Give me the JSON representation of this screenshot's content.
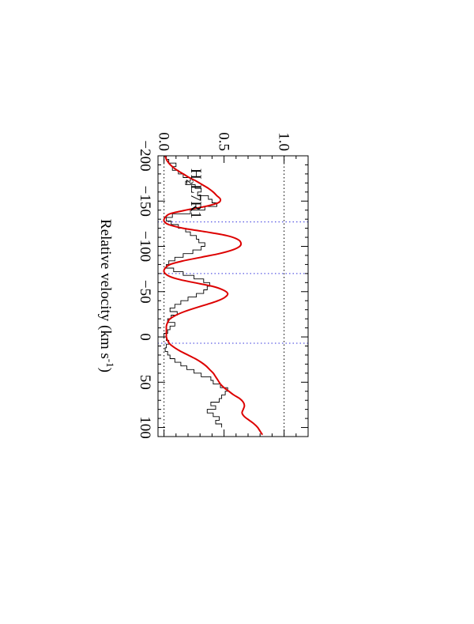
{
  "chart_data": {
    "type": "line",
    "title": "",
    "orientation": "rotated-90-clockwise",
    "xlabel": "Relative velocity (km s",
    "xlabel_sup": "-1",
    "xlabel_tail": ")",
    "ylabel": "",
    "xlim": [
      -200,
      110
    ],
    "ylim": [
      -0.05,
      1.2
    ],
    "x_ticks": [
      -200,
      -150,
      -100,
      -50,
      0,
      50,
      100
    ],
    "x_tick_labels": [
      "−200",
      "−150",
      "−100",
      "−50",
      "0",
      "50",
      "100"
    ],
    "y_ticks": [
      0.0,
      0.5,
      1.0
    ],
    "y_tick_labels": [
      "0.0",
      "0.5",
      "1.0"
    ],
    "reference_lines_y": [
      0.0,
      1.0
    ],
    "component_lines_x": [
      -127,
      -70,
      7
    ],
    "annotation": {
      "prefix": "H",
      "sub": "2",
      "rest": "L7R1"
    },
    "series": [
      {
        "style": "histogram",
        "color": "#000000",
        "x": [
          -198,
          -194,
          -190,
          -186,
          -182,
          -178,
          -174,
          -170,
          -166,
          -162,
          -158,
          -154,
          -150,
          -146,
          -142,
          -138,
          -134,
          -130,
          -126,
          -122,
          -118,
          -114,
          -110,
          -106,
          -102,
          -98,
          -94,
          -90,
          -86,
          -82,
          -78,
          -74,
          -70,
          -66,
          -62,
          -58,
          -54,
          -50,
          -46,
          -42,
          -38,
          -34,
          -30,
          -26,
          -22,
          -18,
          -14,
          -10,
          -6,
          -2,
          2,
          6,
          10,
          14,
          18,
          22,
          26,
          30,
          34,
          38,
          42,
          46,
          50,
          54,
          58,
          62,
          66,
          70,
          74,
          78,
          82,
          86,
          90,
          94,
          98
        ],
        "y": [
          0.02,
          0.04,
          0.1,
          0.07,
          0.12,
          0.16,
          0.22,
          0.18,
          0.26,
          0.31,
          0.28,
          0.37,
          0.4,
          0.44,
          0.34,
          0.22,
          0.07,
          0.02,
          0.06,
          0.12,
          0.18,
          0.22,
          0.27,
          0.29,
          0.34,
          0.31,
          0.24,
          0.16,
          0.09,
          0.04,
          0.02,
          0.08,
          0.16,
          0.25,
          0.33,
          0.38,
          0.36,
          0.33,
          0.27,
          0.2,
          0.14,
          0.09,
          0.05,
          0.11,
          0.06,
          0.03,
          0.09,
          0.05,
          0.03,
          0.0,
          0.02,
          0.04,
          0.02,
          0.01,
          0.03,
          0.05,
          0.09,
          0.14,
          0.19,
          0.25,
          0.31,
          0.39,
          0.41,
          0.47,
          0.53,
          0.51,
          0.48,
          0.46,
          0.39,
          0.43,
          0.36,
          0.41,
          0.46,
          0.43,
          0.48
        ]
      },
      {
        "style": "smooth",
        "color": "#dd0000",
        "x": [
          -200,
          -196,
          -192,
          -188,
          -184,
          -180,
          -176,
          -172,
          -168,
          -164,
          -160,
          -156,
          -152,
          -148,
          -144,
          -140,
          -136,
          -132,
          -128,
          -124,
          -120,
          -116,
          -112,
          -108,
          -104,
          -100,
          -96,
          -92,
          -88,
          -84,
          -80,
          -76,
          -72,
          -68,
          -64,
          -60,
          -56,
          -52,
          -48,
          -44,
          -40,
          -36,
          -32,
          -28,
          -24,
          -20,
          -16,
          -12,
          -8,
          -4,
          0,
          4,
          8,
          12,
          16,
          20,
          24,
          28,
          32,
          36,
          40,
          44,
          48,
          52,
          56,
          60,
          64,
          68,
          72,
          76,
          80,
          84,
          88,
          92,
          96,
          100,
          104,
          108
        ],
        "y": [
          0.01,
          0.02,
          0.04,
          0.07,
          0.11,
          0.16,
          0.21,
          0.27,
          0.32,
          0.37,
          0.41,
          0.44,
          0.47,
          0.45,
          0.34,
          0.18,
          0.05,
          0.01,
          0.0,
          0.04,
          0.16,
          0.35,
          0.52,
          0.61,
          0.64,
          0.63,
          0.57,
          0.46,
          0.31,
          0.16,
          0.05,
          0.01,
          0.0,
          0.03,
          0.11,
          0.25,
          0.4,
          0.49,
          0.53,
          0.51,
          0.45,
          0.36,
          0.26,
          0.17,
          0.1,
          0.05,
          0.03,
          0.02,
          0.02,
          0.02,
          0.02,
          0.03,
          0.05,
          0.09,
          0.14,
          0.2,
          0.26,
          0.31,
          0.35,
          0.38,
          0.41,
          0.43,
          0.45,
          0.47,
          0.5,
          0.54,
          0.58,
          0.63,
          0.66,
          0.67,
          0.66,
          0.65,
          0.67,
          0.71,
          0.75,
          0.78,
          0.8,
          0.82
        ]
      }
    ]
  }
}
